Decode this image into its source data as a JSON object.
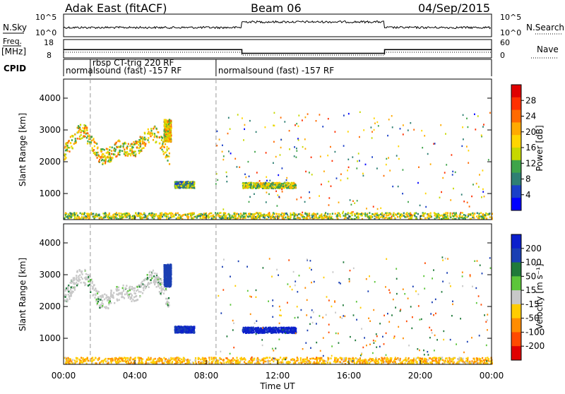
{
  "header": {
    "station": "Adak East (fitACF)",
    "beam": "Beam 06",
    "date": "04/Sep/2015"
  },
  "sky_panel": {
    "left_label": "N.Sky",
    "left_ticks": [
      "10^5",
      "10^0"
    ],
    "right_label": "N.Search",
    "right_ticks": [
      "10^5",
      "10^0"
    ]
  },
  "freq_panel": {
    "left_label": "Freq.",
    "left_unit": "[MHz]",
    "left_ticks": [
      "18",
      "8"
    ],
    "right_label": "Nave",
    "right_ticks": [
      "60",
      "0"
    ]
  },
  "cpid_panel": {
    "label": "CPID",
    "segments": [
      {
        "start_h": 0.0,
        "end_h": 1.5,
        "text": "normalsound (fast) -157 RF"
      },
      {
        "start_h": 1.5,
        "end_h": 8.55,
        "text": "rbsp CT-trig 220 RF"
      },
      {
        "start_h": 8.55,
        "end_h": 24.0,
        "text": "normalsound (fast) -157 RF"
      }
    ]
  },
  "time_axis": {
    "label": "Time UT",
    "ticks": [
      "00:00",
      "04:00",
      "08:00",
      "12:00",
      "16:00",
      "20:00",
      "00:00"
    ]
  },
  "range_axis": {
    "label": "Slant Range [km]",
    "ticks": [
      "1000",
      "2000",
      "3000",
      "4000"
    ]
  },
  "power_scale": {
    "label": "Power [dB]",
    "ticks": [
      "4",
      "8",
      "12",
      "16",
      "20",
      "24",
      "28"
    ],
    "colors": [
      "#0000ff",
      "#1a3fc8",
      "#2e7f73",
      "#3fa44a",
      "#c6d800",
      "#ffd500",
      "#ffaa00",
      "#ff6a00",
      "#ff3000",
      "#e00000"
    ]
  },
  "velocity_scale": {
    "label": "Velocity [m s⁻¹]",
    "ticks": [
      "200",
      "100",
      "50",
      "15",
      "-15",
      "-50",
      "-100",
      "-200"
    ],
    "colors": [
      "#0b1fcc",
      "#1a3fb3",
      "#1f7a3a",
      "#5cc53a",
      "#c8c8c8",
      "#ffcc00",
      "#ff8c00",
      "#ff4a00",
      "#e00000"
    ]
  },
  "chart_data": {
    "type": "heatmap",
    "x_range_h": [
      0,
      24
    ],
    "y_range_km": [
      180,
      4600
    ],
    "dashed_markers_h": [
      1.5,
      8.55
    ],
    "nsky": [
      {
        "start_h": 0.0,
        "end_h": 10.0,
        "level": "low"
      },
      {
        "start_h": 10.0,
        "end_h": 18.0,
        "level": "high"
      },
      {
        "start_h": 18.0,
        "end_h": 24.0,
        "level": "low"
      }
    ],
    "frequency_MHz": [
      {
        "start_h": 0.0,
        "end_h": 10.0,
        "value": 12.5
      },
      {
        "start_h": 10.0,
        "end_h": 18.0,
        "value": 10.5
      },
      {
        "start_h": 18.0,
        "end_h": 24.0,
        "value": 12.5
      }
    ],
    "scatter_regions": [
      {
        "name": "early band",
        "t0": 0.0,
        "t1": 5.9,
        "r_center": 2500,
        "r_width": 500,
        "power": 18,
        "velocity": 0
      },
      {
        "name": "spike",
        "t0": 5.6,
        "t1": 6.0,
        "r_center": 3000,
        "r_width": 700,
        "power": 18,
        "velocity": 150
      },
      {
        "name": "mid echo",
        "t0": 6.2,
        "t1": 7.3,
        "r_center": 1300,
        "r_width": 200,
        "power": 12,
        "velocity": 200
      },
      {
        "name": "late echo",
        "t0": 10.0,
        "t1": 13.0,
        "r_center": 1280,
        "r_width": 180,
        "power": 16,
        "velocity": 220
      },
      {
        "name": "near range clutter",
        "t0": 0.0,
        "t1": 24.0,
        "r_center": 320,
        "r_width": 200,
        "power": 16,
        "velocity": -40
      }
    ]
  }
}
